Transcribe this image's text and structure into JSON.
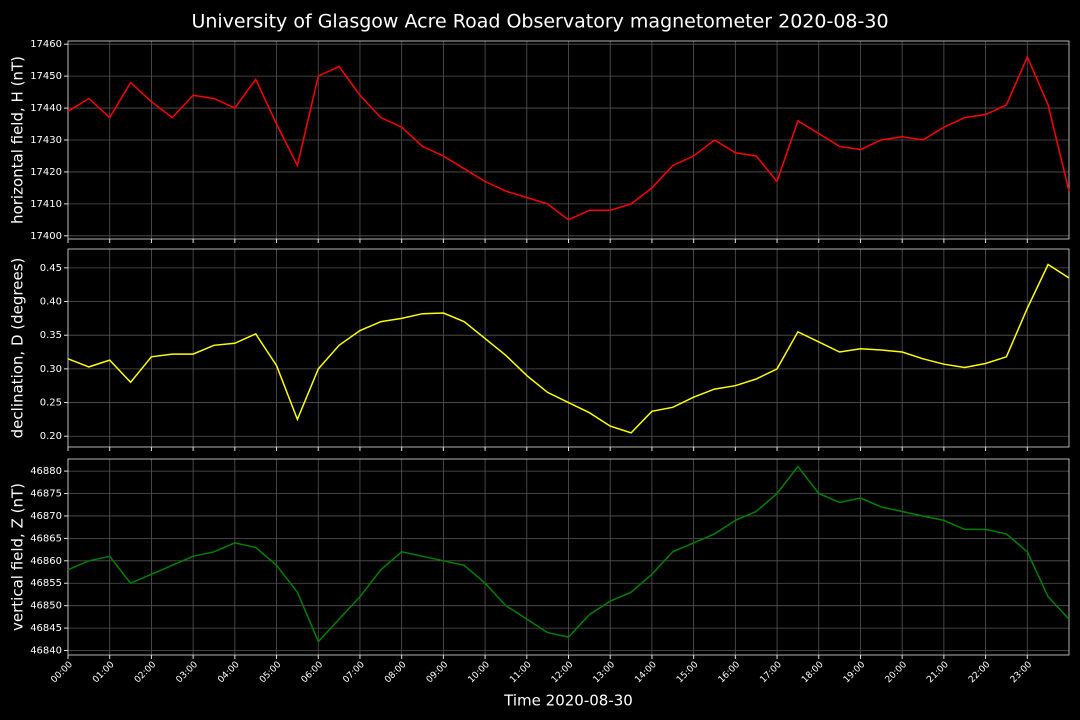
{
  "title": "University of Glasgow Acre Road Observatory magnetometer 2020-08-30",
  "chart_data": [
    {
      "type": "line",
      "ylabel": "horizontal field, H (nT)",
      "color": "#ff0000",
      "grid": true,
      "xlim": [
        0,
        24
      ],
      "ylim": [
        17399,
        17461
      ],
      "yticks": [
        17400,
        17410,
        17420,
        17430,
        17440,
        17450,
        17460
      ],
      "x": [
        0,
        0.5,
        1,
        1.5,
        2,
        2.5,
        3,
        3.5,
        4,
        4.5,
        5,
        5.5,
        6,
        6.5,
        7,
        7.5,
        8,
        8.5,
        9,
        9.5,
        10,
        10.5,
        11,
        11.5,
        12,
        12.5,
        13,
        13.5,
        14,
        14.5,
        15,
        15.5,
        16,
        16.5,
        17,
        17.5,
        18,
        18.5,
        19,
        19.5,
        20,
        20.5,
        21,
        21.5,
        22,
        22.5,
        23,
        23.5,
        24
      ],
      "values": [
        17439,
        17443,
        17437,
        17448,
        17442,
        17437,
        17444,
        17443,
        17440,
        17449,
        17435,
        17422,
        17450,
        17453,
        17444,
        17437,
        17434,
        17428,
        17425,
        17421,
        17417,
        17414,
        17412,
        17410,
        17405,
        17408,
        17408,
        17410,
        17415,
        17422,
        17425,
        17430,
        17426,
        17425,
        17417,
        17436,
        17432,
        17428,
        17427,
        17430,
        17431,
        17430,
        17434,
        17437,
        17438,
        17441,
        17456,
        17441,
        17414
      ]
    },
    {
      "type": "line",
      "ylabel": "declination, D (degrees)",
      "color": "#ffff00",
      "grid": true,
      "xlim": [
        0,
        24
      ],
      "ylim": [
        0.184,
        0.478
      ],
      "yticks": [
        {
          "value": 0.2,
          "label": "0.20"
        },
        0.25,
        {
          "value": 0.3,
          "label": "0.30"
        },
        0.35,
        {
          "value": 0.4,
          "label": "0.40"
        },
        0.45
      ],
      "x": [
        0,
        0.5,
        1,
        1.5,
        2,
        2.5,
        3,
        3.5,
        4,
        4.5,
        5,
        5.5,
        6,
        6.5,
        7,
        7.5,
        8,
        8.5,
        9,
        9.5,
        10,
        10.5,
        11,
        11.5,
        12,
        12.5,
        13,
        13.5,
        14,
        14.5,
        15,
        15.5,
        16,
        16.5,
        17,
        17.5,
        18,
        18.5,
        19,
        19.5,
        20,
        20.5,
        21,
        21.5,
        22,
        22.5,
        23,
        23.5,
        24
      ],
      "values": [
        0.315,
        0.303,
        0.313,
        0.28,
        0.318,
        0.322,
        0.322,
        0.335,
        0.338,
        0.352,
        0.305,
        0.225,
        0.3,
        0.335,
        0.357,
        0.37,
        0.375,
        0.382,
        0.383,
        0.37,
        0.345,
        0.32,
        0.29,
        0.265,
        0.25,
        0.235,
        0.215,
        0.205,
        0.237,
        0.243,
        0.258,
        0.27,
        0.275,
        0.285,
        0.3,
        0.355,
        0.34,
        0.325,
        0.33,
        0.328,
        0.325,
        0.315,
        0.307,
        0.302,
        0.308,
        0.318,
        0.39,
        0.455,
        0.435
      ]
    },
    {
      "type": "line",
      "ylabel": "vertical field, Z (nT)",
      "xlabel": "Time 2020-08-30",
      "color": "#008000",
      "grid": true,
      "xlim": [
        0,
        24
      ],
      "ylim": [
        46839,
        46882.7
      ],
      "yticks": [
        46840,
        46845,
        46850,
        46855,
        46860,
        46865,
        46870,
        46875,
        46880
      ],
      "xticks": [
        {
          "value": 0,
          "label": "00:00"
        },
        {
          "value": 1,
          "label": "01:00"
        },
        {
          "value": 2,
          "label": "02:00"
        },
        {
          "value": 3,
          "label": "03:00"
        },
        {
          "value": 4,
          "label": "04:00"
        },
        {
          "value": 5,
          "label": "05:00"
        },
        {
          "value": 6,
          "label": "06:00"
        },
        {
          "value": 7,
          "label": "07:00"
        },
        {
          "value": 8,
          "label": "08:00"
        },
        {
          "value": 9,
          "label": "09:00"
        },
        {
          "value": 10,
          "label": "10:00"
        },
        {
          "value": 11,
          "label": "11:00"
        },
        {
          "value": 12,
          "label": "12:00"
        },
        {
          "value": 13,
          "label": "13:00"
        },
        {
          "value": 14,
          "label": "14:00"
        },
        {
          "value": 15,
          "label": "15:00"
        },
        {
          "value": 16,
          "label": "16:00"
        },
        {
          "value": 17,
          "label": "17:00"
        },
        {
          "value": 18,
          "label": "18:00"
        },
        {
          "value": 19,
          "label": "19:00"
        },
        {
          "value": 20,
          "label": "20:00"
        },
        {
          "value": 21,
          "label": "21:00"
        },
        {
          "value": 22,
          "label": "22:00"
        },
        {
          "value": 23,
          "label": "23:00"
        }
      ],
      "x": [
        0,
        0.5,
        1,
        1.5,
        2,
        2.5,
        3,
        3.5,
        4,
        4.5,
        5,
        5.5,
        6,
        6.5,
        7,
        7.5,
        8,
        8.5,
        9,
        9.5,
        10,
        10.5,
        11,
        11.5,
        12,
        12.5,
        13,
        13.5,
        14,
        14.5,
        15,
        15.5,
        16,
        16.5,
        17,
        17.5,
        18,
        18.5,
        19,
        19.5,
        20,
        20.5,
        21,
        21.5,
        22,
        22.5,
        23,
        23.5,
        24
      ],
      "values": [
        46858,
        46860,
        46861,
        46855,
        46857,
        46859,
        46861,
        46862,
        46864,
        46863,
        46859,
        46853,
        46842,
        46847,
        46852,
        46858,
        46862,
        46861,
        46860,
        46859,
        46855,
        46850,
        46847,
        46844,
        46843,
        46848,
        46851,
        46853,
        46857,
        46862,
        46864,
        46866,
        46869,
        46871,
        46875,
        46881,
        46875,
        46873,
        46874,
        46872,
        46871,
        46870,
        46869,
        46867,
        46867,
        46866,
        46862,
        46852,
        46847
      ]
    }
  ]
}
